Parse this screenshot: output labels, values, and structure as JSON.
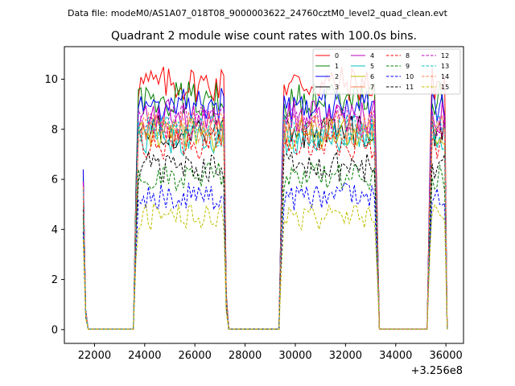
{
  "figure": {
    "suptitle": "Data file: modeM0/AS1A07_018T08_9000003622_24760cztM0_level2_quad_clean.evt"
  },
  "chart_data": {
    "type": "line",
    "title": "Quadrant 2 module wise count rates with 100.0s bins.",
    "xlabel": "",
    "ylabel": "",
    "x_offset_label": "+3.256e8",
    "xlim": [
      20800,
      36700
    ],
    "ylim": [
      -0.55,
      11.3
    ],
    "xticks": [
      22000,
      24000,
      26000,
      28000,
      30000,
      32000,
      34000,
      36000
    ],
    "xtick_labels": [
      "22000",
      "24000",
      "26000",
      "28000",
      "30000",
      "32000",
      "34000",
      "36000"
    ],
    "yticks": [
      0,
      2,
      4,
      6,
      8,
      10
    ],
    "ytick_labels": [
      "0",
      "2",
      "4",
      "6",
      "8",
      "10"
    ],
    "grid": false,
    "legend_position": "top-right",
    "legend_columns": 4,
    "x_start": 21550,
    "x_step": 100,
    "segments": [
      {
        "start": 21550,
        "end": 21750,
        "note": "decay"
      },
      {
        "start": 21750,
        "end": 23650,
        "note": "zero"
      },
      {
        "start": 23650,
        "end": 27350,
        "note": "active"
      },
      {
        "start": 27350,
        "end": 27550,
        "note": "zero"
      },
      {
        "start": 27550,
        "end": 29450,
        "note": "zero"
      },
      {
        "start": 29450,
        "end": 33350,
        "note": "active"
      },
      {
        "start": 33350,
        "end": 35350,
        "note": "zero"
      },
      {
        "start": 35350,
        "end": 36050,
        "note": "active"
      }
    ],
    "series": [
      {
        "name": "0",
        "color": "#ff0000",
        "dash": "solid",
        "level": 9.8,
        "start": 6.3
      },
      {
        "name": "1",
        "color": "#008000",
        "dash": "solid",
        "level": 9.2,
        "start": 6.1
      },
      {
        "name": "2",
        "color": "#0000ff",
        "dash": "solid",
        "level": 9.0,
        "start": 6.4
      },
      {
        "name": "3",
        "color": "#000000",
        "dash": "solid",
        "level": 7.9,
        "start": 5.6
      },
      {
        "name": "4",
        "color": "#bf00bf",
        "dash": "solid",
        "level": 8.5,
        "start": 5.9
      },
      {
        "name": "5",
        "color": "#00bfbf",
        "dash": "solid",
        "level": 7.6,
        "start": 5.4
      },
      {
        "name": "6",
        "color": "#bfbf00",
        "dash": "solid",
        "level": 7.8,
        "start": 5.5
      },
      {
        "name": "7",
        "color": "#ff7f50",
        "dash": "solid",
        "level": 8.0,
        "start": 5.7
      },
      {
        "name": "8",
        "color": "#ff0000",
        "dash": "dashed",
        "level": 7.4,
        "start": 5.3
      },
      {
        "name": "9",
        "color": "#008000",
        "dash": "dashed",
        "level": 6.1,
        "start": 4.5
      },
      {
        "name": "10",
        "color": "#0000ff",
        "dash": "dashed",
        "level": 5.3,
        "start": 3.9
      },
      {
        "name": "11",
        "color": "#000000",
        "dash": "dashed",
        "level": 6.5,
        "start": 4.8
      },
      {
        "name": "12",
        "color": "#bf00bf",
        "dash": "dashed",
        "level": 8.3,
        "start": 5.9
      },
      {
        "name": "13",
        "color": "#00bfbf",
        "dash": "dashed",
        "level": 8.0,
        "start": 5.6
      },
      {
        "name": "14",
        "color": "#ff7f50",
        "dash": "dashed",
        "level": 8.1,
        "start": 5.7
      },
      {
        "name": "15",
        "color": "#bfbf00",
        "dash": "dashed",
        "level": 4.5,
        "start": 3.6
      }
    ]
  }
}
